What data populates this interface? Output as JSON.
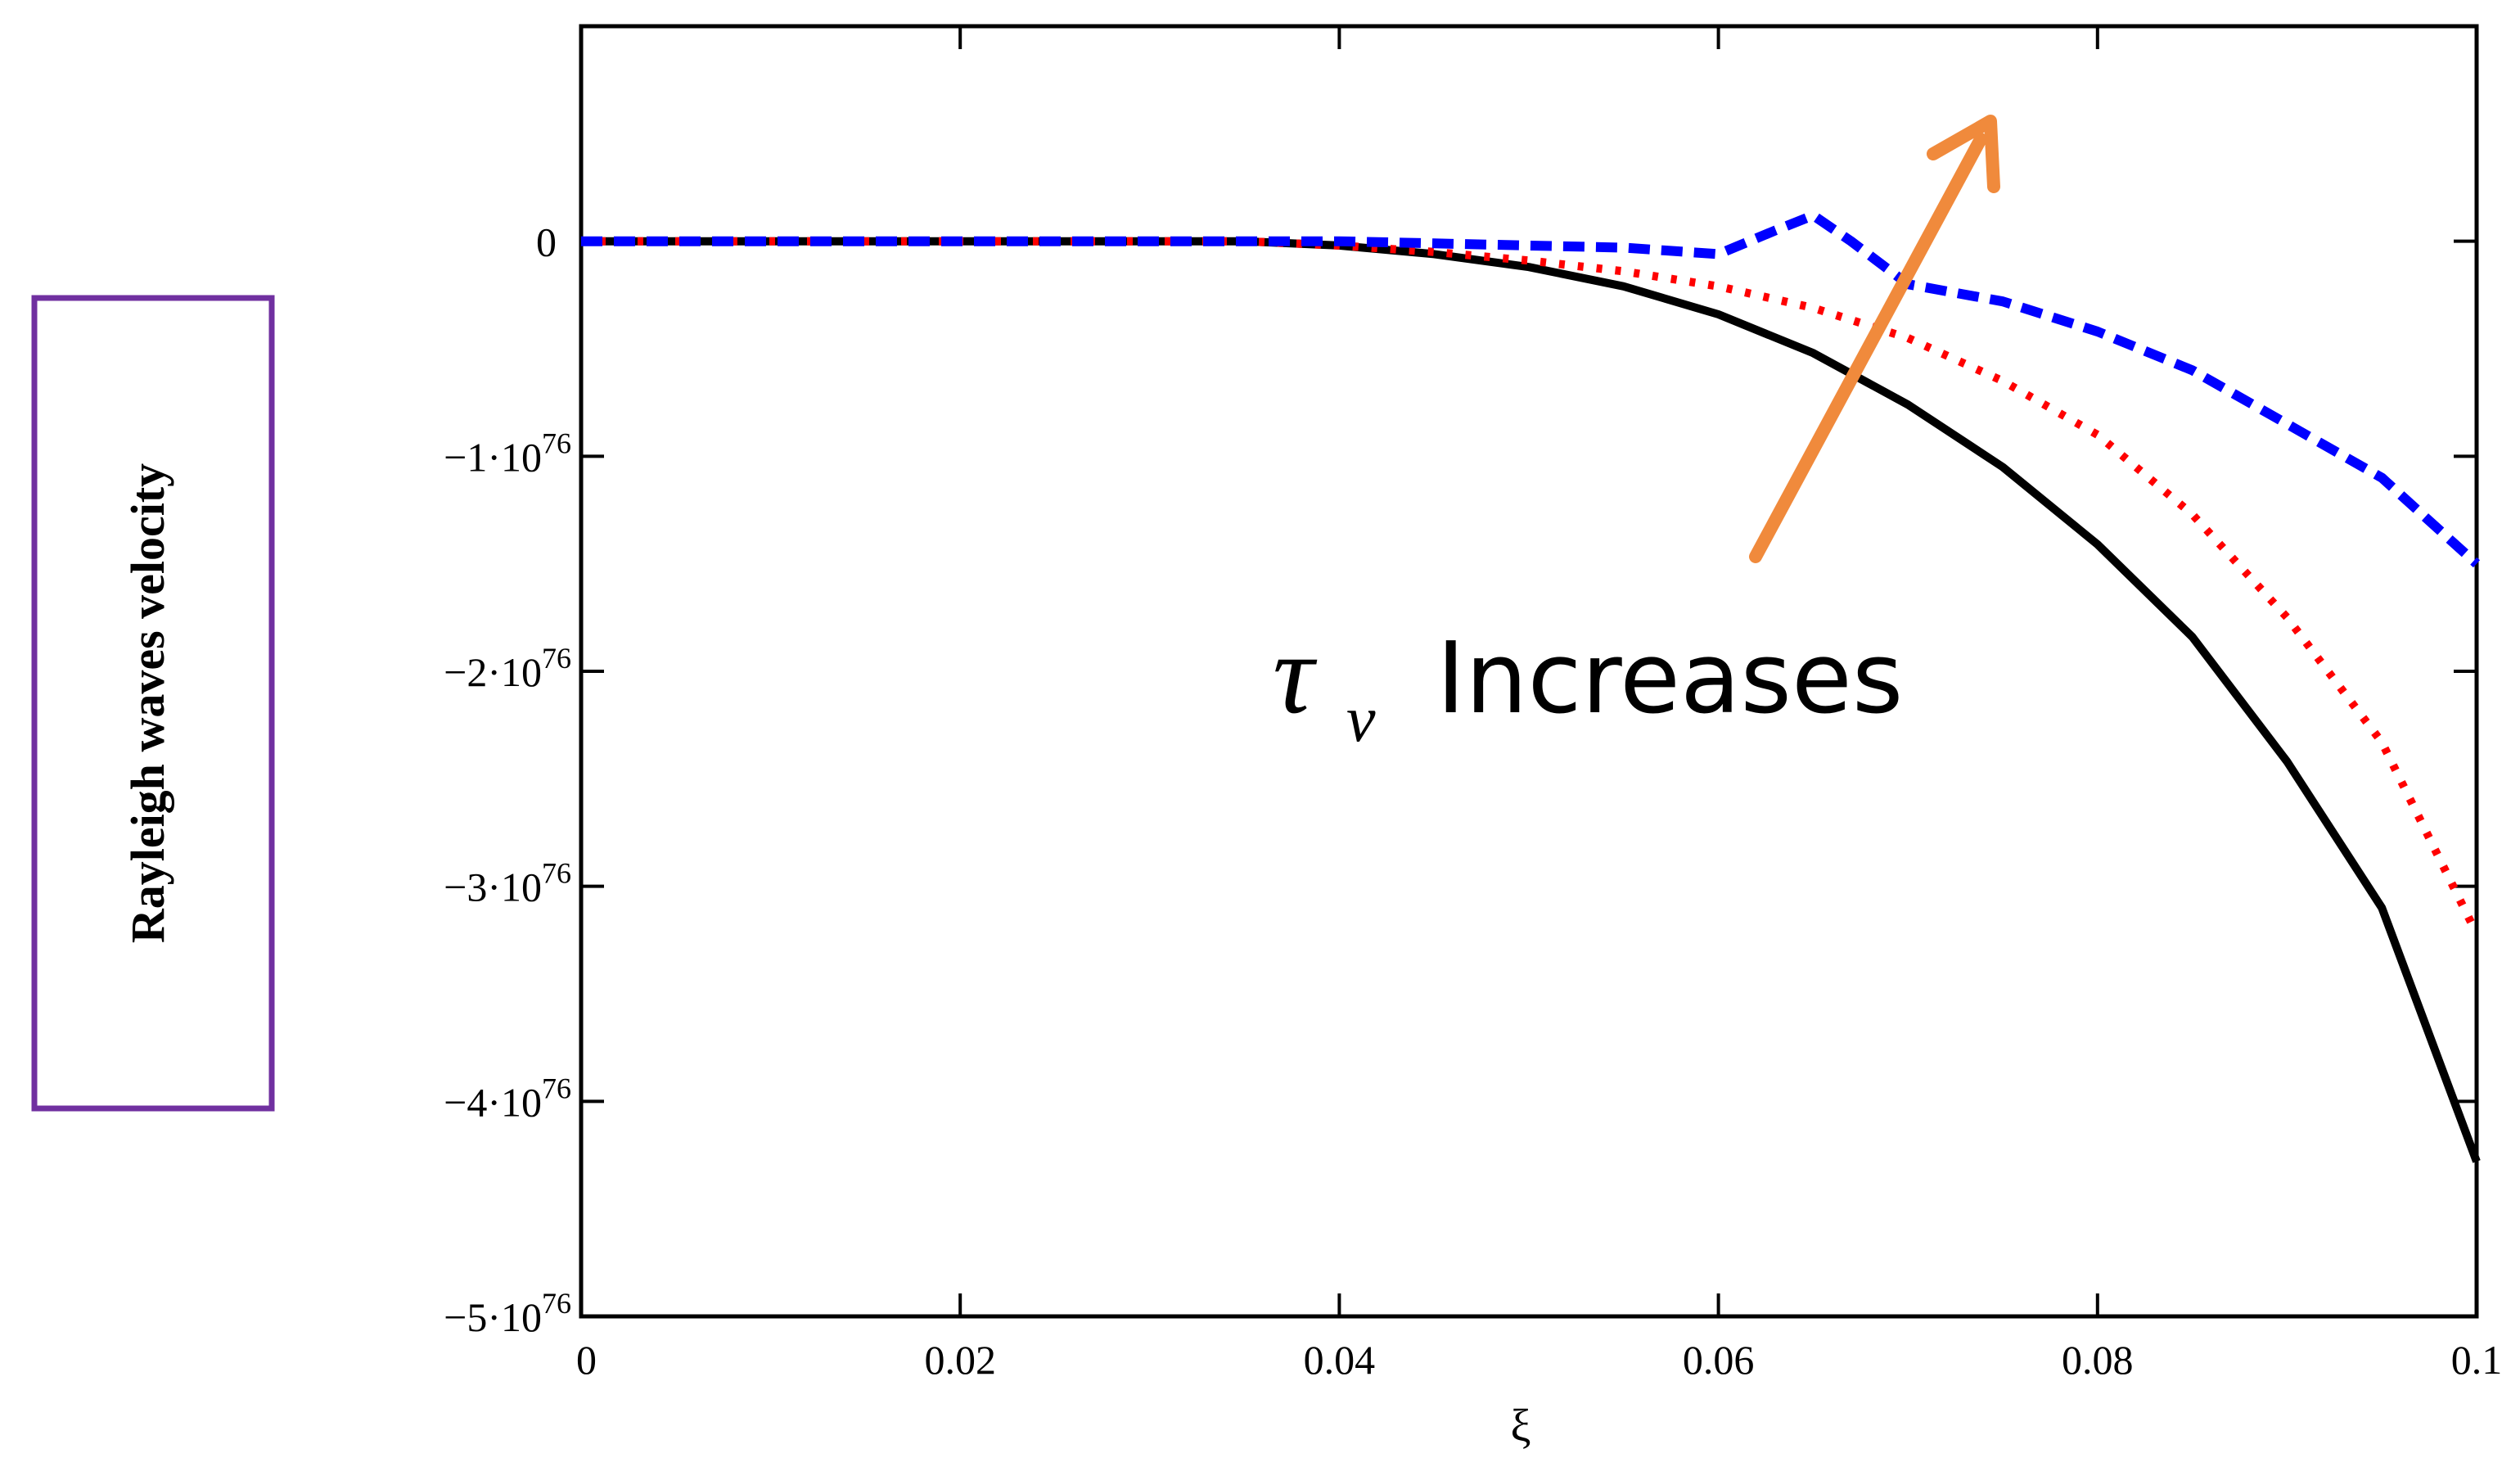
{
  "chart_data": {
    "type": "line",
    "title": "",
    "xlabel": "ξ",
    "ylabel": "Rayleigh waves velocity",
    "xlim": [
      0,
      0.1
    ],
    "ylim": [
      -5,
      1
    ],
    "y_unit_exponent": 76,
    "x_ticks": [
      {
        "value": 0,
        "label": "0"
      },
      {
        "value": 0.02,
        "label": "0.02"
      },
      {
        "value": 0.04,
        "label": "0.04"
      },
      {
        "value": 0.06,
        "label": "0.06"
      },
      {
        "value": 0.08,
        "label": "0.08"
      },
      {
        "value": 0.1,
        "label": "0.1"
      }
    ],
    "y_ticks": [
      {
        "value": 0,
        "mantissa": "0",
        "exp": ""
      },
      {
        "value": -1,
        "mantissa": "−1·10",
        "exp": "76"
      },
      {
        "value": -2,
        "mantissa": "−2·10",
        "exp": "76"
      },
      {
        "value": -3,
        "mantissa": "−3·10",
        "exp": "76"
      },
      {
        "value": -4,
        "mantissa": "−4·10",
        "exp": "76"
      },
      {
        "value": -5,
        "mantissa": "−5·10",
        "exp": "76"
      }
    ],
    "grid": false,
    "legend": "none",
    "annotation": {
      "symbol": "τ",
      "subscript": "v",
      "text": "Increases",
      "arrow_color": "#f08a3c"
    },
    "series": [
      {
        "color": "#000000",
        "style": "solid",
        "x": [
          0,
          0.01,
          0.02,
          0.03,
          0.035,
          0.04,
          0.045,
          0.05,
          0.055,
          0.06,
          0.065,
          0.07,
          0.075,
          0.08,
          0.085,
          0.09,
          0.095,
          0.1
        ],
        "y": [
          0,
          0,
          0,
          0,
          0,
          -0.02,
          -0.06,
          -0.12,
          -0.21,
          -0.34,
          -0.52,
          -0.76,
          -1.05,
          -1.41,
          -1.84,
          -2.42,
          -3.1,
          -4.28
        ]
      },
      {
        "color": "#ff0000",
        "style": "dotted",
        "x": [
          0,
          0.01,
          0.02,
          0.03,
          0.035,
          0.04,
          0.045,
          0.05,
          0.055,
          0.06,
          0.065,
          0.07,
          0.075,
          0.08,
          0.085,
          0.09,
          0.095,
          0.1
        ],
        "y": [
          0,
          0,
          0,
          0,
          0,
          -0.02,
          -0.05,
          -0.09,
          -0.14,
          -0.21,
          -0.31,
          -0.45,
          -0.65,
          -0.9,
          -1.27,
          -1.75,
          -2.33,
          -3.22
        ]
      },
      {
        "color": "#0000ff",
        "style": "dashed",
        "x": [
          0,
          0.01,
          0.02,
          0.03,
          0.035,
          0.04,
          0.045,
          0.05,
          0.055,
          0.06,
          0.063,
          0.065,
          0.067,
          0.07,
          0.075,
          0.08,
          0.085,
          0.09,
          0.095,
          0.1
        ],
        "y": [
          0,
          0,
          0,
          0,
          0,
          0,
          -0.01,
          -0.02,
          -0.03,
          -0.06,
          0.05,
          0.12,
          0.0,
          -0.2,
          -0.28,
          -0.42,
          -0.6,
          -0.85,
          -1.1,
          -1.5
        ]
      }
    ]
  }
}
